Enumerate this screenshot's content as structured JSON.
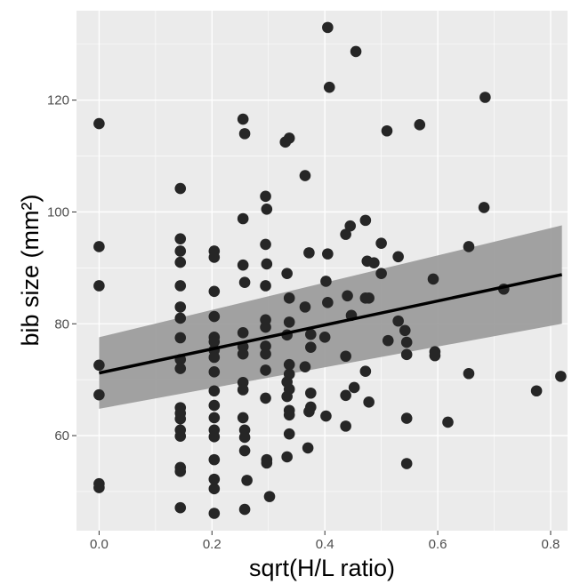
{
  "chart_data": {
    "type": "scatter",
    "xlabel": "sqrt(H/L ratio)",
    "ylabel": "bib size (mm²)",
    "xlim": [
      -0.04,
      0.83
    ],
    "ylim": [
      43,
      136
    ],
    "x_ticks": [
      0.0,
      0.2,
      0.4,
      0.6,
      0.8
    ],
    "x_tick_labels": [
      "0.0",
      "0.2",
      "0.4",
      "0.6",
      "0.8"
    ],
    "y_ticks": [
      60,
      80,
      100,
      120
    ],
    "y_tick_labels": [
      "60",
      "80",
      "100",
      "120"
    ],
    "grid": true,
    "panel_background": "#ebebeb",
    "grid_color": "#ffffff",
    "point_color": "#262626",
    "fit_line_color": "#000000",
    "ribbon_color": "#999999",
    "fit_line": {
      "x": [
        0.0,
        0.82
      ],
      "y": [
        71.2,
        88.8
      ]
    },
    "confidence_band": {
      "x": [
        0.0,
        0.82
      ],
      "lower": [
        64.8,
        80.0
      ],
      "upper": [
        77.6,
        97.6
      ]
    },
    "points": [
      {
        "x": 0.0,
        "y": 115.8
      },
      {
        "x": 0.0,
        "y": 93.8
      },
      {
        "x": 0.0,
        "y": 86.8
      },
      {
        "x": 0.0,
        "y": 72.6
      },
      {
        "x": 0.0,
        "y": 67.3
      },
      {
        "x": 0.0,
        "y": 51.4
      },
      {
        "x": 0.0,
        "y": 50.7
      },
      {
        "x": 0.144,
        "y": 104.2
      },
      {
        "x": 0.144,
        "y": 95.2
      },
      {
        "x": 0.144,
        "y": 93.0
      },
      {
        "x": 0.144,
        "y": 91.0
      },
      {
        "x": 0.144,
        "y": 86.8
      },
      {
        "x": 0.144,
        "y": 83.0
      },
      {
        "x": 0.144,
        "y": 81.0
      },
      {
        "x": 0.144,
        "y": 77.5
      },
      {
        "x": 0.144,
        "y": 73.6
      },
      {
        "x": 0.144,
        "y": 72.0
      },
      {
        "x": 0.144,
        "y": 65.0
      },
      {
        "x": 0.144,
        "y": 64.0
      },
      {
        "x": 0.144,
        "y": 63.0
      },
      {
        "x": 0.144,
        "y": 61.0
      },
      {
        "x": 0.144,
        "y": 59.9
      },
      {
        "x": 0.144,
        "y": 54.3
      },
      {
        "x": 0.144,
        "y": 53.6
      },
      {
        "x": 0.144,
        "y": 47.1
      },
      {
        "x": 0.204,
        "y": 93.0
      },
      {
        "x": 0.204,
        "y": 91.9
      },
      {
        "x": 0.204,
        "y": 85.8
      },
      {
        "x": 0.204,
        "y": 81.3
      },
      {
        "x": 0.204,
        "y": 77.6
      },
      {
        "x": 0.204,
        "y": 76.8
      },
      {
        "x": 0.204,
        "y": 75.3
      },
      {
        "x": 0.204,
        "y": 74.0
      },
      {
        "x": 0.204,
        "y": 71.4
      },
      {
        "x": 0.204,
        "y": 68.0
      },
      {
        "x": 0.204,
        "y": 65.4
      },
      {
        "x": 0.204,
        "y": 63.2
      },
      {
        "x": 0.204,
        "y": 61.0
      },
      {
        "x": 0.204,
        "y": 59.8
      },
      {
        "x": 0.204,
        "y": 55.7
      },
      {
        "x": 0.204,
        "y": 52.2
      },
      {
        "x": 0.204,
        "y": 50.5
      },
      {
        "x": 0.204,
        "y": 46.1
      },
      {
        "x": 0.255,
        "y": 116.6
      },
      {
        "x": 0.258,
        "y": 114.0
      },
      {
        "x": 0.255,
        "y": 98.8
      },
      {
        "x": 0.255,
        "y": 90.5
      },
      {
        "x": 0.258,
        "y": 87.4
      },
      {
        "x": 0.255,
        "y": 78.4
      },
      {
        "x": 0.255,
        "y": 75.9
      },
      {
        "x": 0.255,
        "y": 74.6
      },
      {
        "x": 0.255,
        "y": 69.5
      },
      {
        "x": 0.255,
        "y": 68.2
      },
      {
        "x": 0.255,
        "y": 63.2
      },
      {
        "x": 0.258,
        "y": 61.0
      },
      {
        "x": 0.258,
        "y": 59.7
      },
      {
        "x": 0.258,
        "y": 57.3
      },
      {
        "x": 0.262,
        "y": 52.0
      },
      {
        "x": 0.258,
        "y": 46.8
      },
      {
        "x": 0.295,
        "y": 102.8
      },
      {
        "x": 0.297,
        "y": 100.5
      },
      {
        "x": 0.295,
        "y": 94.2
      },
      {
        "x": 0.297,
        "y": 90.7
      },
      {
        "x": 0.295,
        "y": 86.8
      },
      {
        "x": 0.295,
        "y": 80.7
      },
      {
        "x": 0.295,
        "y": 79.4
      },
      {
        "x": 0.295,
        "y": 76.0
      },
      {
        "x": 0.295,
        "y": 74.6
      },
      {
        "x": 0.295,
        "y": 71.7
      },
      {
        "x": 0.295,
        "y": 66.7
      },
      {
        "x": 0.297,
        "y": 55.7
      },
      {
        "x": 0.297,
        "y": 55.1
      },
      {
        "x": 0.302,
        "y": 49.1
      },
      {
        "x": 0.33,
        "y": 112.5
      },
      {
        "x": 0.337,
        "y": 113.2
      },
      {
        "x": 0.333,
        "y": 89.0
      },
      {
        "x": 0.337,
        "y": 84.6
      },
      {
        "x": 0.337,
        "y": 80.3
      },
      {
        "x": 0.333,
        "y": 78.0
      },
      {
        "x": 0.337,
        "y": 72.7
      },
      {
        "x": 0.337,
        "y": 71.0
      },
      {
        "x": 0.333,
        "y": 69.6
      },
      {
        "x": 0.337,
        "y": 68.3
      },
      {
        "x": 0.333,
        "y": 67.0
      },
      {
        "x": 0.337,
        "y": 64.5
      },
      {
        "x": 0.337,
        "y": 63.7
      },
      {
        "x": 0.337,
        "y": 60.3
      },
      {
        "x": 0.333,
        "y": 56.2
      },
      {
        "x": 0.365,
        "y": 106.5
      },
      {
        "x": 0.365,
        "y": 83.0
      },
      {
        "x": 0.365,
        "y": 72.3
      },
      {
        "x": 0.372,
        "y": 92.7
      },
      {
        "x": 0.375,
        "y": 78.1
      },
      {
        "x": 0.375,
        "y": 75.8
      },
      {
        "x": 0.375,
        "y": 67.6
      },
      {
        "x": 0.375,
        "y": 65.1
      },
      {
        "x": 0.372,
        "y": 64.3
      },
      {
        "x": 0.37,
        "y": 57.8
      },
      {
        "x": 0.405,
        "y": 133.0
      },
      {
        "x": 0.408,
        "y": 122.3
      },
      {
        "x": 0.405,
        "y": 92.5
      },
      {
        "x": 0.402,
        "y": 87.6
      },
      {
        "x": 0.405,
        "y": 83.8
      },
      {
        "x": 0.4,
        "y": 77.6
      },
      {
        "x": 0.402,
        "y": 63.5
      },
      {
        "x": 0.455,
        "y": 128.7
      },
      {
        "x": 0.445,
        "y": 97.5
      },
      {
        "x": 0.437,
        "y": 96.0
      },
      {
        "x": 0.44,
        "y": 85.0
      },
      {
        "x": 0.447,
        "y": 81.5
      },
      {
        "x": 0.437,
        "y": 74.2
      },
      {
        "x": 0.437,
        "y": 67.2
      },
      {
        "x": 0.452,
        "y": 68.6
      },
      {
        "x": 0.437,
        "y": 61.7
      },
      {
        "x": 0.472,
        "y": 98.5
      },
      {
        "x": 0.475,
        "y": 91.2
      },
      {
        "x": 0.487,
        "y": 90.9
      },
      {
        "x": 0.472,
        "y": 84.6
      },
      {
        "x": 0.478,
        "y": 84.6
      },
      {
        "x": 0.472,
        "y": 71.5
      },
      {
        "x": 0.478,
        "y": 66.0
      },
      {
        "x": 0.5,
        "y": 94.4
      },
      {
        "x": 0.5,
        "y": 89.0
      },
      {
        "x": 0.51,
        "y": 114.5
      },
      {
        "x": 0.512,
        "y": 77.0
      },
      {
        "x": 0.53,
        "y": 92.0
      },
      {
        "x": 0.53,
        "y": 80.5
      },
      {
        "x": 0.542,
        "y": 78.8
      },
      {
        "x": 0.545,
        "y": 76.7
      },
      {
        "x": 0.545,
        "y": 74.5
      },
      {
        "x": 0.545,
        "y": 63.1
      },
      {
        "x": 0.545,
        "y": 55.0
      },
      {
        "x": 0.568,
        "y": 115.6
      },
      {
        "x": 0.592,
        "y": 88.0
      },
      {
        "x": 0.595,
        "y": 75.0
      },
      {
        "x": 0.595,
        "y": 74.3
      },
      {
        "x": 0.618,
        "y": 62.4
      },
      {
        "x": 0.655,
        "y": 93.8
      },
      {
        "x": 0.655,
        "y": 71.1
      },
      {
        "x": 0.684,
        "y": 120.5
      },
      {
        "x": 0.682,
        "y": 100.8
      },
      {
        "x": 0.717,
        "y": 86.2
      },
      {
        "x": 0.775,
        "y": 68.0
      },
      {
        "x": 0.818,
        "y": 70.6
      }
    ]
  }
}
